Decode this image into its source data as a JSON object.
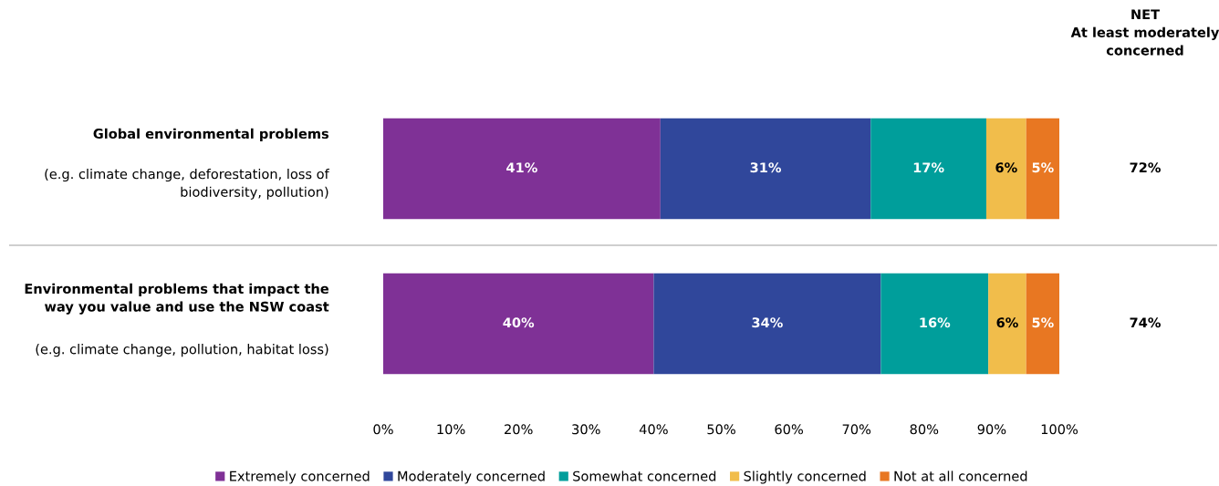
{
  "chart_data": {
    "type": "bar",
    "orientation": "horizontal",
    "stacked": true,
    "categories": [
      "Global environmental problems\n\n(e.g. climate change, deforestation, loss of\nbiodiversity, pollution)",
      "Environmental problems that impact the\nway you value and use the NSW coast\n\n(e.g. climate change, pollution, habitat loss)"
    ],
    "series": [
      {
        "name": "Extremely concerned",
        "color": "#7f3196",
        "values": [
          41.0,
          40.0
        ],
        "value_labels": [
          "41%",
          "40%"
        ]
      },
      {
        "name": "Moderately concerned",
        "color": "#30479b",
        "values": [
          31.1,
          33.6
        ],
        "value_labels": [
          "31%",
          "34%"
        ]
      },
      {
        "name": "Somewhat concerned",
        "color": "#009e9b",
        "values": [
          17.1,
          15.9
        ],
        "value_labels": [
          "17%",
          "16%"
        ]
      },
      {
        "name": "Slightly concerned",
        "color": "#f1bd4b",
        "values": [
          5.9,
          5.6
        ],
        "value_labels": [
          "6%",
          "6%"
        ]
      },
      {
        "name": "Not at all concerned",
        "color": "#e87722",
        "values": [
          4.9,
          4.9
        ],
        "value_labels": [
          "5%",
          "5%"
        ]
      }
    ],
    "xlim": [
      0,
      100
    ],
    "xticks": [
      {
        "value": 0,
        "label": "0%"
      },
      {
        "value": 10,
        "label": "10%"
      },
      {
        "value": 20,
        "label": "20%"
      },
      {
        "value": 30,
        "label": "30%"
      },
      {
        "value": 40,
        "label": "40%"
      },
      {
        "value": 50,
        "label": "50%"
      },
      {
        "value": 60,
        "label": "60%"
      },
      {
        "value": 70,
        "label": "70%"
      },
      {
        "value": 80,
        "label": "80%"
      },
      {
        "value": 90,
        "label": "90%"
      },
      {
        "value": 100,
        "label": "100%"
      }
    ],
    "annotations": [
      "NET\nAt least moderately\nconcerned",
      "72%",
      "74%"
    ],
    "legend": "bottom",
    "grid": false
  }
}
